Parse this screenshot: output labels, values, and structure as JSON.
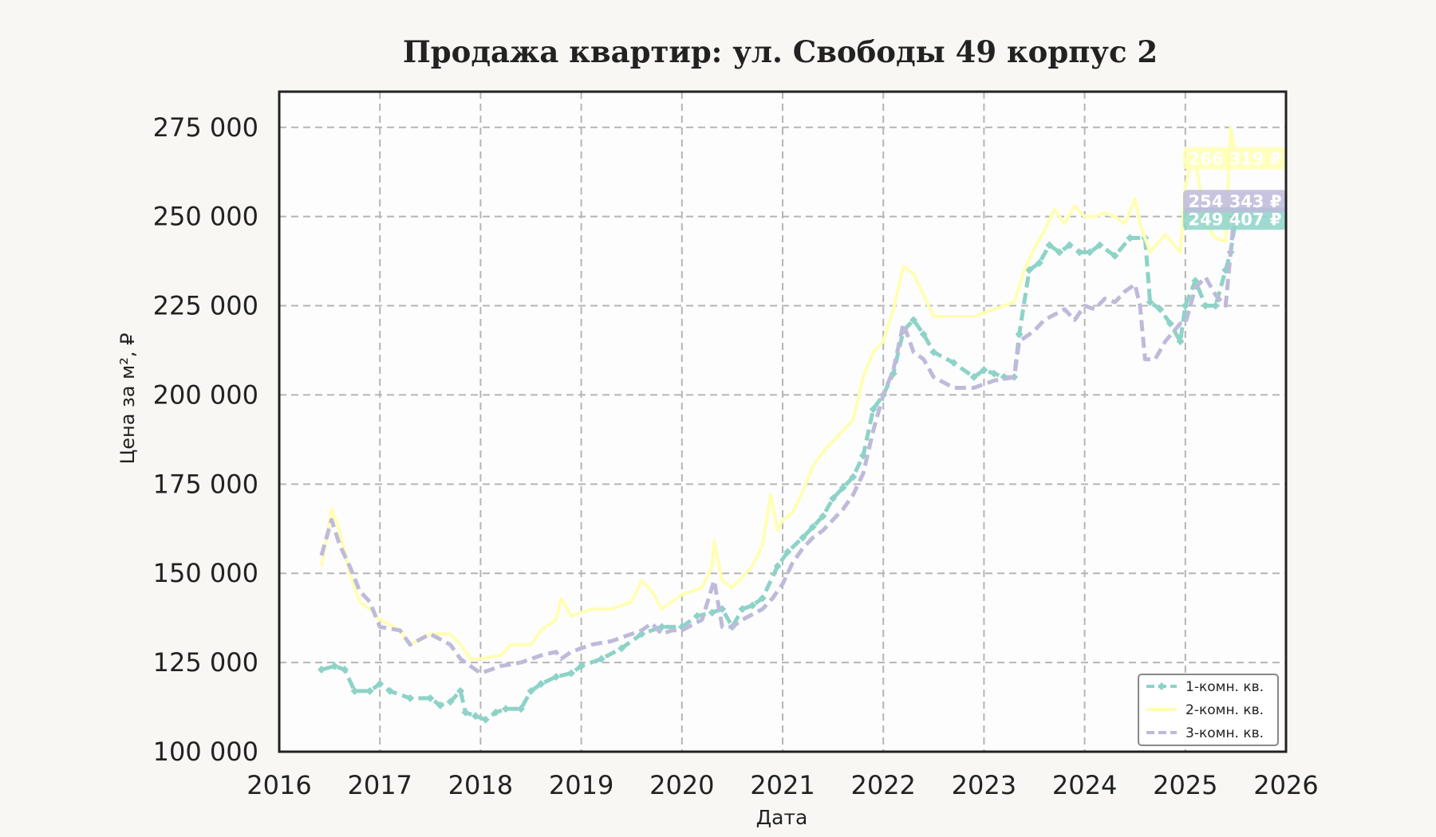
{
  "chart_data": {
    "type": "line",
    "title": "Продажа квартир: ул. Свободы 49 корпус 2",
    "xlabel": "Дата",
    "ylabel": "Цена за м², ₽",
    "xlim": [
      2016.0,
      2026.0
    ],
    "ylim": [
      100000,
      285000
    ],
    "x_ticks": [
      "2016",
      "2017",
      "2018",
      "2019",
      "2020",
      "2021",
      "2022",
      "2023",
      "2024",
      "2025",
      "2026"
    ],
    "y_ticks": [
      "100 000",
      "125 000",
      "150 000",
      "175 000",
      "200 000",
      "225 000",
      "250 000",
      "275 000"
    ],
    "grid": true,
    "legend_position": "bottom-right",
    "series": [
      {
        "name": "1-комн. кв.",
        "color": "#8dd3c7",
        "style": "dashed-diamond",
        "end_label": "249 407 ₽",
        "x": [
          2016.42,
          2016.55,
          2016.65,
          2016.75,
          2016.9,
          2017.0,
          2017.1,
          2017.3,
          2017.5,
          2017.6,
          2017.7,
          2017.8,
          2017.85,
          2017.95,
          2018.05,
          2018.15,
          2018.25,
          2018.4,
          2018.5,
          2018.6,
          2018.75,
          2018.9,
          2019.0,
          2019.2,
          2019.4,
          2019.6,
          2019.8,
          2020.0,
          2020.15,
          2020.3,
          2020.4,
          2020.5,
          2020.6,
          2020.7,
          2020.8,
          2020.95,
          2021.05,
          2021.2,
          2021.3,
          2021.4,
          2021.5,
          2021.6,
          2021.7,
          2021.8,
          2021.9,
          2022.0,
          2022.1,
          2022.2,
          2022.3,
          2022.4,
          2022.5,
          2022.7,
          2022.9,
          2023.0,
          2023.1,
          2023.2,
          2023.3,
          2023.35,
          2023.45,
          2023.55,
          2023.65,
          2023.75,
          2023.85,
          2023.95,
          2024.05,
          2024.15,
          2024.3,
          2024.45,
          2024.6,
          2024.65,
          2024.75,
          2024.85,
          2024.95,
          2025.0,
          2025.1,
          2025.2,
          2025.3,
          2025.4,
          2025.45,
          2025.5
        ],
        "y": [
          123000,
          124000,
          123000,
          117000,
          117000,
          119000,
          117000,
          115000,
          115000,
          113000,
          114000,
          117000,
          111000,
          110000,
          109000,
          111000,
          112000,
          112000,
          117000,
          119000,
          121000,
          122000,
          124000,
          126000,
          129000,
          133000,
          135000,
          135000,
          138000,
          139000,
          140000,
          135000,
          140000,
          141000,
          143000,
          152000,
          156000,
          160000,
          163000,
          166000,
          171000,
          174000,
          177000,
          183000,
          196000,
          200000,
          206000,
          218000,
          221000,
          217000,
          212000,
          209000,
          205000,
          207000,
          206000,
          205000,
          205000,
          217000,
          235000,
          237000,
          242000,
          240000,
          242000,
          240000,
          240000,
          242000,
          239000,
          244000,
          244000,
          226000,
          224000,
          220000,
          215000,
          225000,
          232000,
          225000,
          225000,
          235000,
          240000,
          249407
        ]
      },
      {
        "name": "2-комн. кв.",
        "color": "#ffffb3",
        "style": "solid",
        "end_label": "266 319 ₽",
        "x": [
          2016.42,
          2016.52,
          2016.6,
          2016.7,
          2016.8,
          2016.9,
          2017.0,
          2017.2,
          2017.3,
          2017.5,
          2017.7,
          2017.8,
          2017.9,
          2018.0,
          2018.2,
          2018.3,
          2018.5,
          2018.6,
          2018.75,
          2018.8,
          2018.9,
          2019.1,
          2019.3,
          2019.5,
          2019.6,
          2019.7,
          2019.8,
          2019.9,
          2020.0,
          2020.2,
          2020.3,
          2020.32,
          2020.4,
          2020.5,
          2020.6,
          2020.7,
          2020.8,
          2020.88,
          2020.95,
          2021.0,
          2021.1,
          2021.2,
          2021.3,
          2021.4,
          2021.5,
          2021.6,
          2021.7,
          2021.8,
          2021.9,
          2022.0,
          2022.1,
          2022.2,
          2022.3,
          2022.4,
          2022.5,
          2022.7,
          2022.9,
          2023.0,
          2023.1,
          2023.2,
          2023.3,
          2023.4,
          2023.5,
          2023.6,
          2023.7,
          2023.8,
          2023.9,
          2024.0,
          2024.1,
          2024.2,
          2024.3,
          2024.4,
          2024.5,
          2024.55,
          2024.65,
          2024.8,
          2024.95,
          2025.0,
          2025.05,
          2025.1,
          2025.2,
          2025.3,
          2025.4,
          2025.45,
          2025.5
        ],
        "y": [
          152000,
          168000,
          162000,
          150000,
          142000,
          140000,
          137000,
          134000,
          130000,
          133000,
          133000,
          130000,
          126000,
          126000,
          127000,
          130000,
          130000,
          134000,
          137000,
          143000,
          138000,
          140000,
          140000,
          142000,
          148000,
          145000,
          140000,
          142000,
          144000,
          146000,
          152000,
          159000,
          148000,
          146000,
          149000,
          152000,
          158000,
          172000,
          162000,
          165000,
          167000,
          173000,
          180000,
          184000,
          187000,
          190000,
          193000,
          205000,
          212000,
          215000,
          224000,
          236000,
          234000,
          228000,
          222000,
          222000,
          222000,
          223000,
          224000,
          225000,
          226000,
          235000,
          241000,
          246000,
          252000,
          248000,
          253000,
          250000,
          250000,
          251000,
          250000,
          248000,
          255000,
          248000,
          240000,
          245000,
          240000,
          258000,
          265000,
          266000,
          248000,
          244000,
          243000,
          275000,
          266319
        ]
      },
      {
        "name": "3-комн. кв.",
        "color": "#bebada",
        "style": "dashed",
        "end_label": "254 343 ₽",
        "x": [
          2016.42,
          2016.52,
          2016.6,
          2016.7,
          2016.8,
          2016.9,
          2017.0,
          2017.2,
          2017.3,
          2017.5,
          2017.7,
          2017.8,
          2017.9,
          2018.0,
          2018.1,
          2018.2,
          2018.4,
          2018.6,
          2018.75,
          2018.8,
          2018.9,
          2019.1,
          2019.3,
          2019.5,
          2019.6,
          2019.7,
          2019.8,
          2019.9,
          2020.0,
          2020.2,
          2020.32,
          2020.4,
          2020.5,
          2020.6,
          2020.8,
          2020.9,
          2021.0,
          2021.1,
          2021.2,
          2021.3,
          2021.4,
          2021.5,
          2021.6,
          2021.7,
          2021.8,
          2021.9,
          2022.0,
          2022.1,
          2022.2,
          2022.3,
          2022.4,
          2022.5,
          2022.7,
          2022.9,
          2023.1,
          2023.3,
          2023.35,
          2023.5,
          2023.6,
          2023.8,
          2023.9,
          2024.0,
          2024.1,
          2024.2,
          2024.3,
          2024.4,
          2024.5,
          2024.55,
          2024.6,
          2024.7,
          2024.8,
          2024.95,
          2025.0,
          2025.1,
          2025.2,
          2025.3,
          2025.4,
          2025.45,
          2025.5
        ],
        "y": [
          155000,
          165000,
          158000,
          152000,
          145000,
          142000,
          135000,
          134000,
          130000,
          133000,
          130000,
          126000,
          124000,
          122000,
          123000,
          124000,
          125000,
          127000,
          128000,
          126000,
          128000,
          130000,
          131000,
          133000,
          134000,
          136000,
          133000,
          134000,
          134000,
          137000,
          148000,
          135000,
          135000,
          137000,
          140000,
          143000,
          147000,
          153000,
          157000,
          160000,
          162000,
          165000,
          168000,
          172000,
          178000,
          190000,
          200000,
          207000,
          220000,
          212000,
          210000,
          205000,
          202000,
          202000,
          204000,
          205000,
          215000,
          218000,
          221000,
          224000,
          221000,
          225000,
          224000,
          227000,
          226000,
          229000,
          231000,
          225000,
          210000,
          210000,
          215000,
          220000,
          220000,
          230000,
          233000,
          228000,
          225000,
          240000,
          254343
        ]
      }
    ]
  }
}
